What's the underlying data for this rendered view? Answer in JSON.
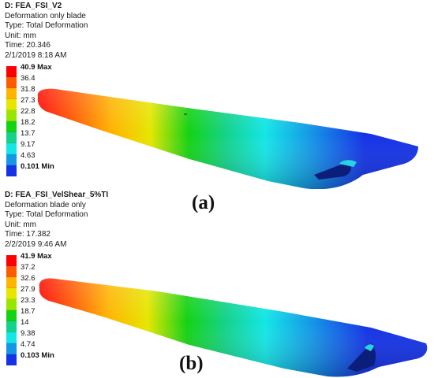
{
  "panels": [
    {
      "id": "a",
      "header": {
        "title": "D: FEA_FSI_V2",
        "lines": [
          "Deformation only blade",
          "Type: Total Deformation",
          "Unit: mm",
          "Time: 20.346",
          "2/1/2019 8:18 AM"
        ]
      },
      "legend": {
        "max_label": "40.9 Max",
        "min_label": "0.101 Min",
        "ticks": [
          "36.4",
          "31.8",
          "27.3",
          "22.8",
          "18.2",
          "13.7",
          "9.17",
          "4.63"
        ]
      },
      "caption": "(a)"
    },
    {
      "id": "b",
      "header": {
        "title": "D: FEA_FSI_VelShear_5%TI",
        "lines": [
          "Deformation blade only",
          "Type: Total Deformation",
          "Unit: mm",
          "Time: 17.382",
          "2/2/2019 9:46 AM"
        ]
      },
      "legend": {
        "max_label": "41.9 Max",
        "min_label": "0.103 Min",
        "ticks": [
          "37.2",
          "32.6",
          "27.9",
          "23.3",
          "18.7",
          "14",
          "9.38",
          "4.74"
        ]
      },
      "caption": "(b)"
    }
  ],
  "colormap": [
    "#ff0000",
    "#ff5a00",
    "#ffb400",
    "#e6e600",
    "#96e600",
    "#14d214",
    "#14d28c",
    "#14e6e6",
    "#1496e6",
    "#1432e6"
  ]
}
